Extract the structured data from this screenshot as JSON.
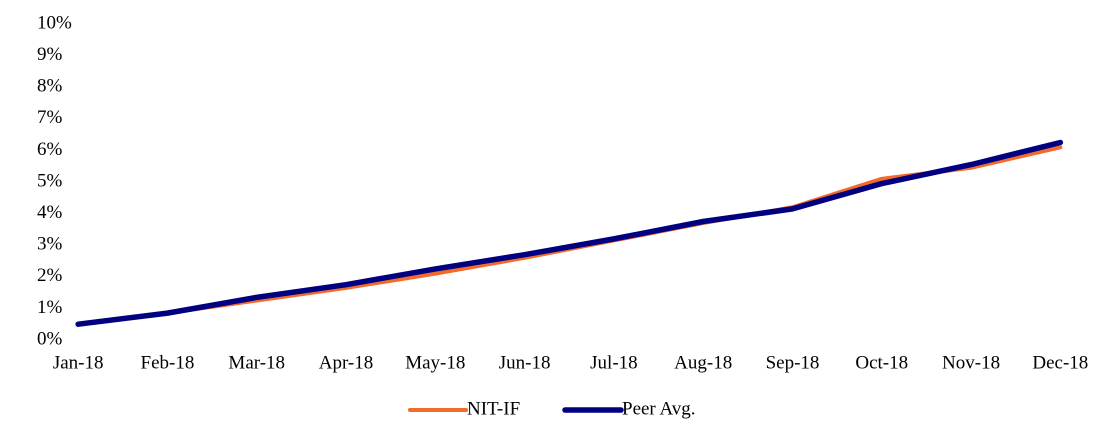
{
  "chart_data": {
    "type": "line",
    "categories": [
      "Jan-18",
      "Feb-18",
      "Mar-18",
      "Apr-18",
      "May-18",
      "Jun-18",
      "Jul-18",
      "Aug-18",
      "Sep-18",
      "Oct-18",
      "Nov-18",
      "Dec-18"
    ],
    "series": [
      {
        "name": "NIT-IF",
        "color": "#f26b2a",
        "values": [
          0.5,
          0.85,
          1.25,
          1.65,
          2.1,
          2.6,
          3.15,
          3.7,
          4.2,
          5.1,
          5.45,
          6.1
        ]
      },
      {
        "name": "Peer Avg.",
        "color": "#000080",
        "values": [
          0.5,
          0.85,
          1.35,
          1.75,
          2.25,
          2.7,
          3.2,
          3.75,
          4.15,
          4.95,
          5.55,
          6.25
        ]
      }
    ],
    "ylim": [
      0,
      10
    ],
    "yticks": [
      {
        "value": 0,
        "label": "0%"
      },
      {
        "value": 1,
        "label": "1%"
      },
      {
        "value": 2,
        "label": "2%"
      },
      {
        "value": 3,
        "label": "3%"
      },
      {
        "value": 4,
        "label": "4%"
      },
      {
        "value": 5,
        "label": "5%"
      },
      {
        "value": 6,
        "label": "6%"
      },
      {
        "value": 7,
        "label": "7%"
      },
      {
        "value": 8,
        "label": "8%"
      },
      {
        "value": 9,
        "label": "9%"
      },
      {
        "value": 10,
        "label": "10%"
      }
    ],
    "grid": false,
    "legend": "bottom"
  }
}
